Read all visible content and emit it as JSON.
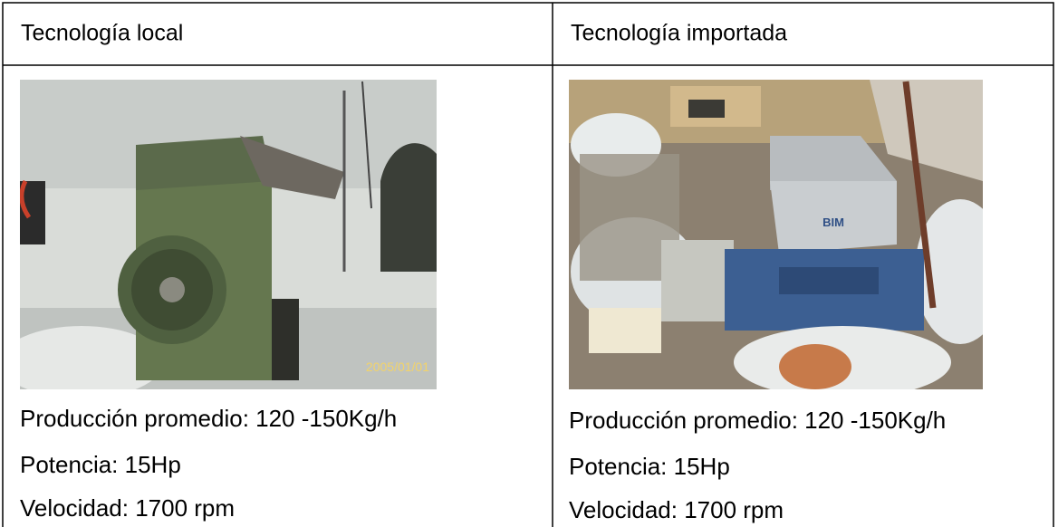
{
  "table": {
    "headers": [
      "Tecnología local",
      "Tecnología importada"
    ],
    "columns": [
      {
        "photo_text": "2005/01/01",
        "specs": [
          "Producción promedio: 120 -150Kg/h",
          "Potencia: 15Hp",
          "Velocidad: 1700 rpm"
        ]
      },
      {
        "photo_text": "BIM",
        "specs": [
          "Producción promedio: 120 -150Kg/h",
          "Potencia: 15Hp",
          "Velocidad: 1700 rpm"
        ]
      }
    ]
  }
}
